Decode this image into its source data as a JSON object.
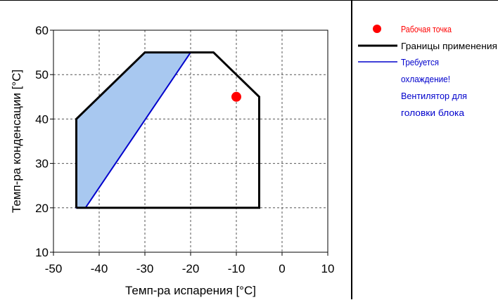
{
  "page": {
    "title": ""
  },
  "colors": {
    "operating_point": "#ff0000",
    "application_limits": "#000000",
    "cooling_required_line": "#0000cc",
    "cooling_required_fill": "#a8c8f0",
    "grid": "#555555",
    "legend_blue_text": "#0000cc",
    "legend_red_text": "#ff0000"
  },
  "legend": {
    "operating_point": "Рабочая точка",
    "application_limits": "Границы применения",
    "cooling_line1": "Требуется",
    "cooling_line2": "охлаждение!",
    "cooling_line3": "Вентилятор для",
    "cooling_line4": "головки блока"
  },
  "chart_data": {
    "type": "line",
    "title": "",
    "xlabel": "Темп-ра испарения [°C]",
    "ylabel": "Темп-ра конденсации [°C]",
    "xlim": [
      -50,
      10
    ],
    "ylim": [
      10,
      60
    ],
    "xticks": [
      -50,
      -40,
      -30,
      -20,
      -10,
      0,
      10
    ],
    "yticks": [
      10,
      20,
      30,
      40,
      50,
      60
    ],
    "grid": true,
    "legend_position": "right",
    "series": [
      {
        "name": "Границы применения",
        "kind": "polygon",
        "x": [
          -45,
          -45,
          -30,
          -15,
          -5,
          -5,
          -45
        ],
        "y": [
          20,
          40,
          55,
          55,
          45,
          20,
          20
        ]
      },
      {
        "name": "Требуется охлаждение! Вентилятор для головки блока",
        "kind": "filled-polygon",
        "x": [
          -45,
          -45,
          -30,
          -20,
          -43,
          -45
        ],
        "y": [
          20,
          40,
          55,
          55,
          20,
          20
        ]
      },
      {
        "name": "Рабочая точка",
        "kind": "point",
        "x": [
          -10
        ],
        "y": [
          45
        ]
      }
    ]
  }
}
